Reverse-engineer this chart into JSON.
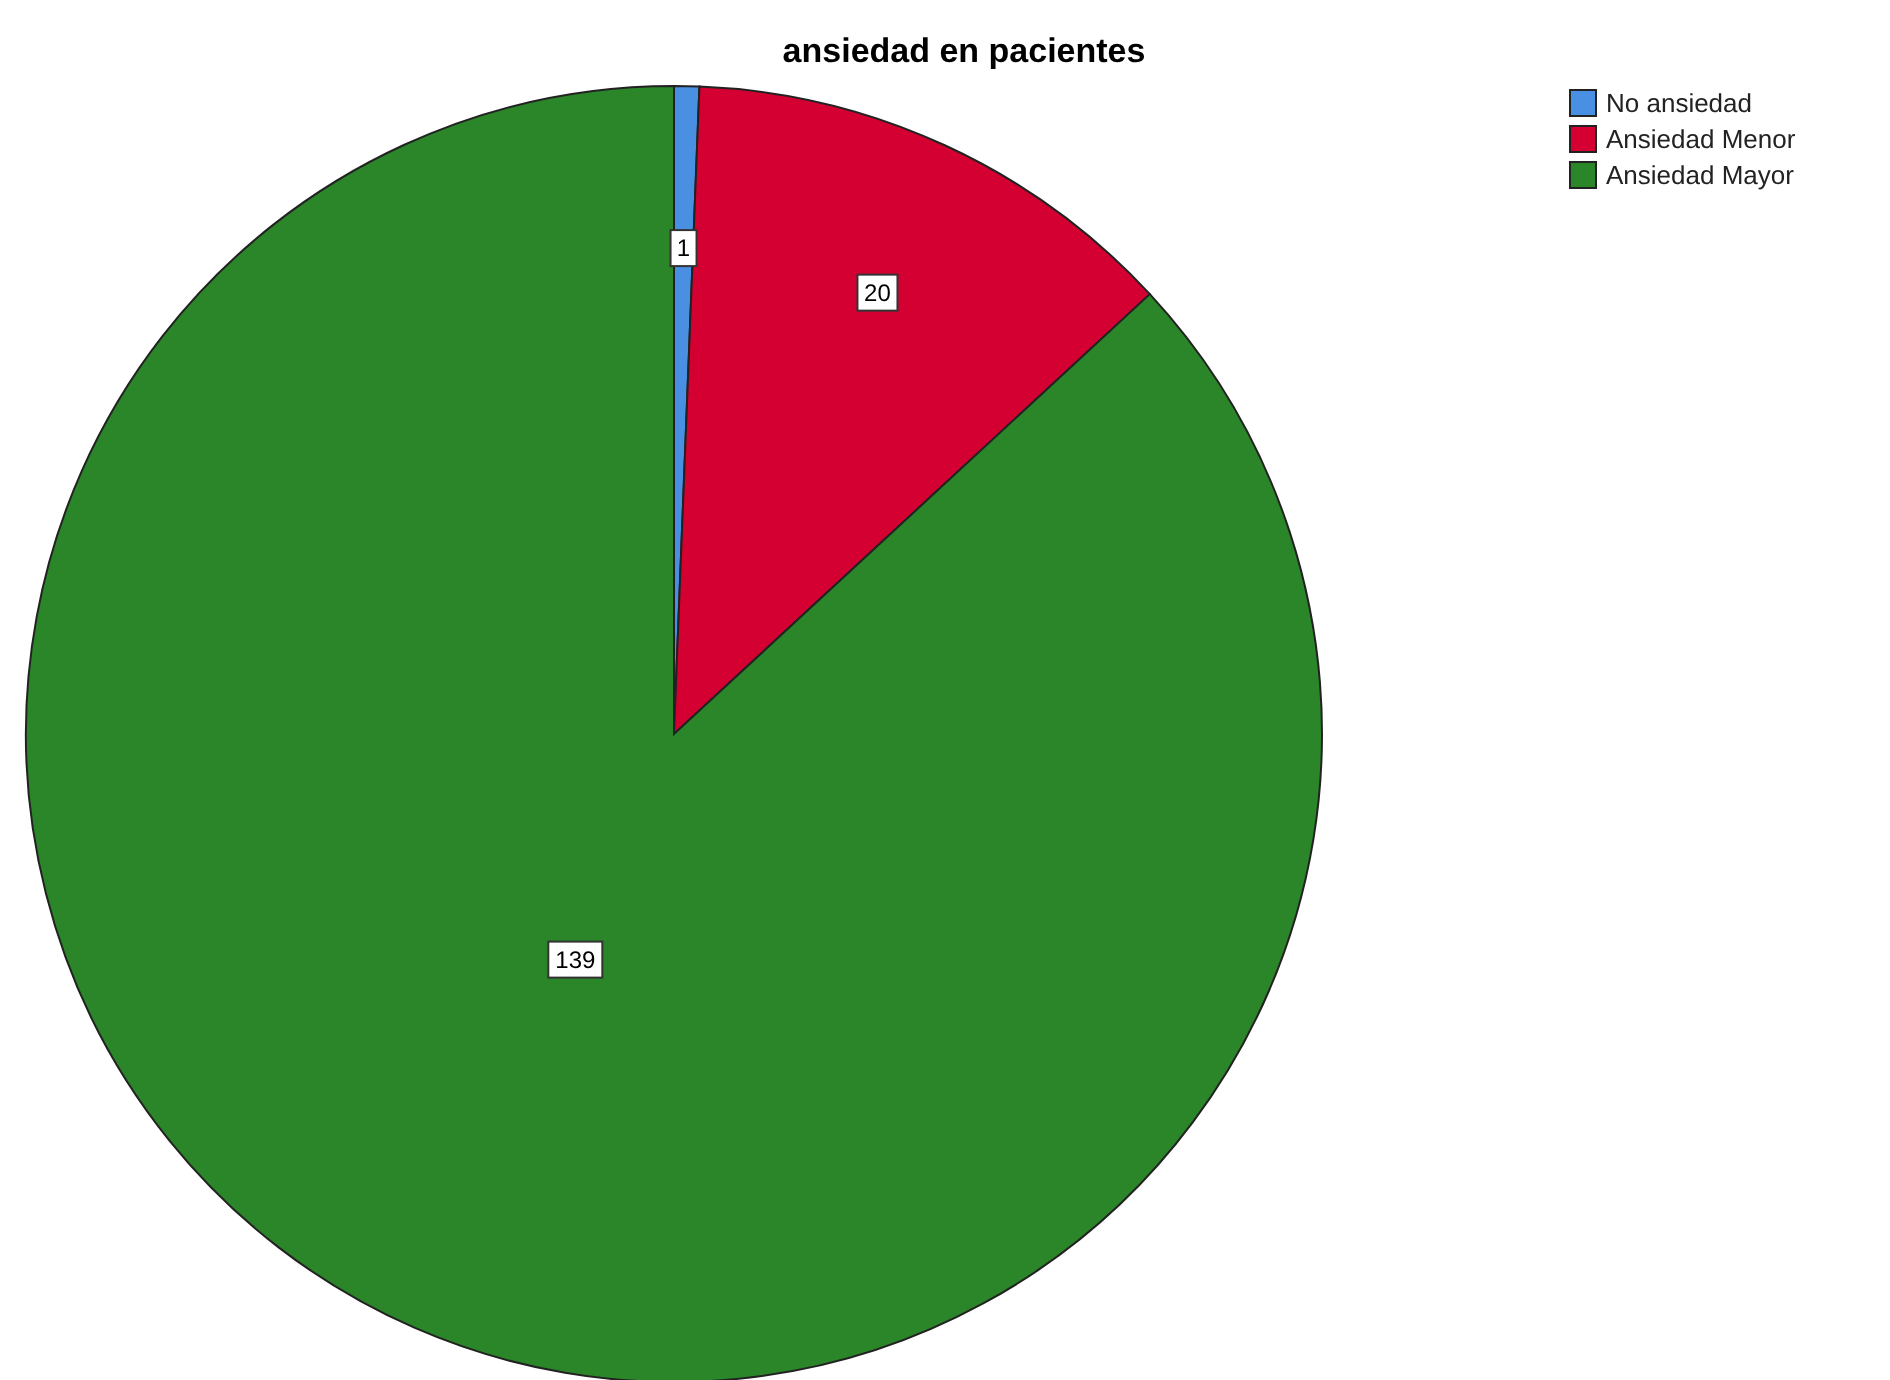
{
  "chart_data": {
    "type": "pie",
    "title": "ansiedad en pacientes",
    "categories": [
      "No ansiedad",
      "Ansiedad Menor",
      "Ansiedad Mayor"
    ],
    "values": [
      1,
      20,
      139
    ],
    "colors": [
      "#4a90e2",
      "#d50032",
      "#2a8628"
    ],
    "data_labels": true,
    "legend": "top right"
  }
}
